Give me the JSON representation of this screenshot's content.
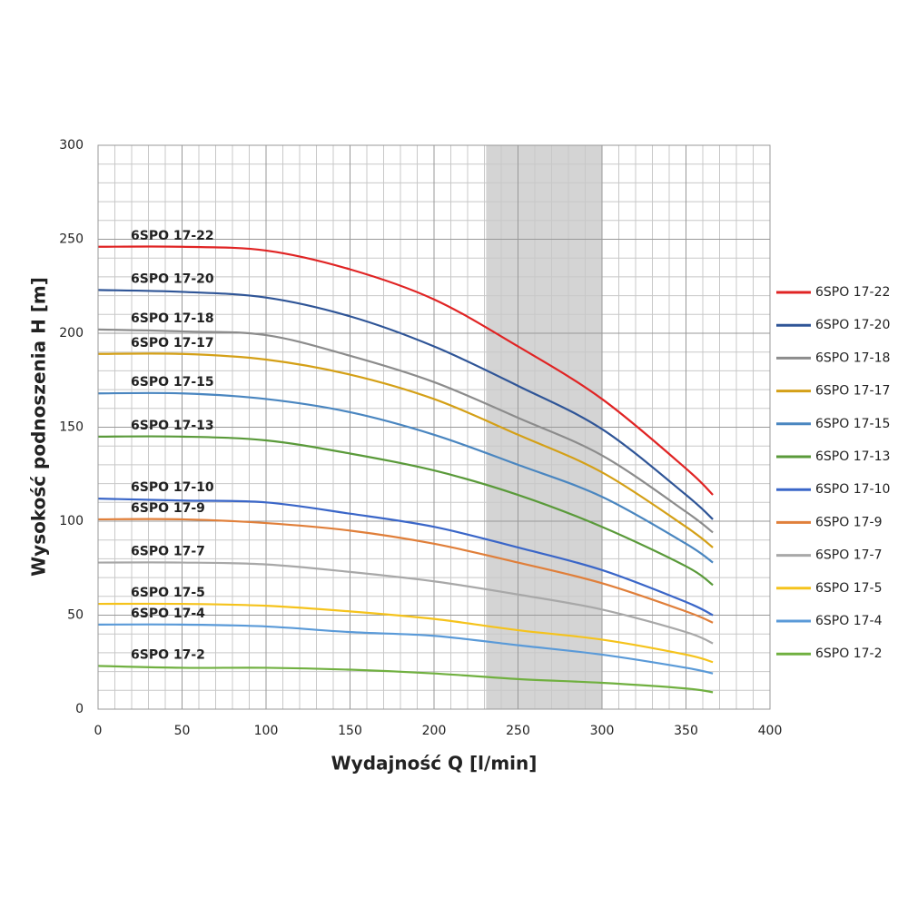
{
  "chart_data": {
    "type": "line",
    "x_label": "Wydajność Q [l/min]",
    "y_label": "Wysokość podnoszenia H [m]",
    "x": [
      0,
      50,
      100,
      150,
      200,
      250,
      300,
      350,
      366
    ],
    "xlim": [
      0,
      400
    ],
    "xticks": [
      0,
      50,
      100,
      150,
      200,
      250,
      300,
      350,
      400
    ],
    "ylim": [
      0,
      300
    ],
    "yticks": [
      0,
      50,
      100,
      150,
      200,
      250,
      300
    ],
    "grid": true,
    "minor_grid_step": 10,
    "highlight_x": [
      231,
      300
    ],
    "legend": "right",
    "series": [
      {
        "name": "6SPO 17-22",
        "color": "#e02424",
        "values": [
          246,
          246,
          244,
          234,
          218,
          193,
          165,
          128,
          114
        ]
      },
      {
        "name": "6SPO 17-20",
        "color": "#2f5597",
        "values": [
          223,
          222,
          219,
          209,
          193,
          172,
          149,
          114,
          101
        ]
      },
      {
        "name": "6SPO 17-18",
        "color": "#8c8c8c",
        "values": [
          202,
          201,
          199,
          188,
          174,
          155,
          135,
          105,
          94
        ]
      },
      {
        "name": "6SPO 17-17",
        "color": "#d4a017",
        "values": [
          189,
          189,
          186,
          178,
          165,
          146,
          126,
          97,
          86
        ]
      },
      {
        "name": "6SPO 17-15",
        "color": "#4a86c0",
        "values": [
          168,
          168,
          165,
          158,
          146,
          130,
          113,
          88,
          78
        ]
      },
      {
        "name": "6SPO 17-13",
        "color": "#5a9a3a",
        "values": [
          145,
          145,
          143,
          136,
          127,
          114,
          97,
          76,
          66
        ]
      },
      {
        "name": "6SPO 17-10",
        "color": "#3a66c8",
        "values": [
          112,
          111,
          110,
          104,
          97,
          86,
          74,
          57,
          50
        ]
      },
      {
        "name": "6SPO 17-9",
        "color": "#e07f3a",
        "values": [
          101,
          101,
          99,
          95,
          88,
          78,
          67,
          52,
          46
        ]
      },
      {
        "name": "6SPO 17-7",
        "color": "#a8a8a8",
        "values": [
          78,
          78,
          77,
          73,
          68,
          61,
          53,
          41,
          35
        ]
      },
      {
        "name": "6SPO 17-5",
        "color": "#f5c31c",
        "values": [
          56,
          56,
          55,
          52,
          48,
          42,
          37,
          29,
          25
        ]
      },
      {
        "name": "6SPO 17-4",
        "color": "#5a9ad8",
        "values": [
          45,
          45,
          44,
          41,
          39,
          34,
          29,
          22,
          19
        ]
      },
      {
        "name": "6SPO 17-2",
        "color": "#70b040",
        "values": [
          23,
          22,
          22,
          21,
          19,
          16,
          14,
          11,
          9
        ]
      }
    ]
  }
}
